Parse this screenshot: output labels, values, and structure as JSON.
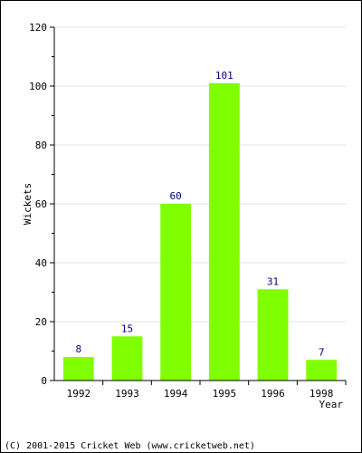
{
  "chart_data": {
    "type": "bar",
    "categories": [
      "1992",
      "1993",
      "1994",
      "1995",
      "1996",
      "1998"
    ],
    "values": [
      8,
      15,
      60,
      101,
      31,
      7
    ],
    "title": "",
    "xlabel": "Year",
    "ylabel": "Wickets",
    "ylim": [
      0,
      120
    ],
    "yticks": [
      0,
      20,
      40,
      60,
      80,
      100,
      120
    ],
    "grid": true,
    "data_labels": true,
    "bar_color": "#80ff00",
    "label_color": "#000080"
  },
  "footer": {
    "copyright": "(C) 2001-2015 Cricket Web (www.cricketweb.net)"
  }
}
